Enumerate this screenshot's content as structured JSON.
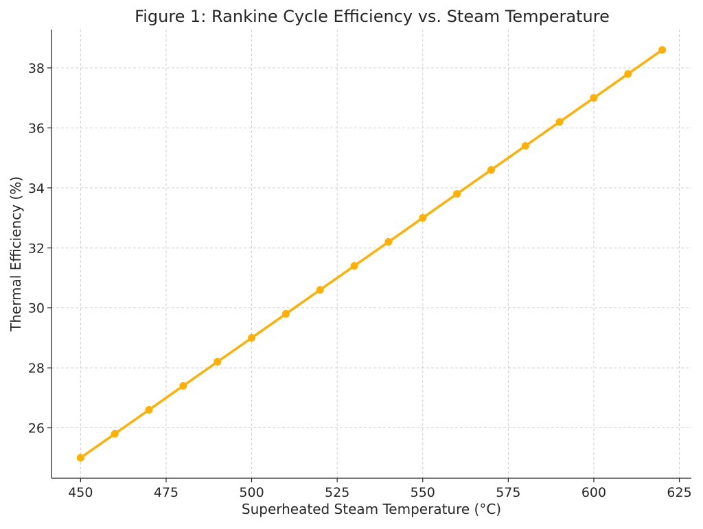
{
  "chart_data": {
    "type": "line",
    "title": "Figure 1: Rankine Cycle Efficiency vs. Steam Temperature",
    "xlabel": "Superheated Steam Temperature (°C)",
    "ylabel": "Thermal Efficiency (%)",
    "xlim": [
      441.5,
      628.5
    ],
    "ylim": [
      24.32,
      39.28
    ],
    "xticks": [
      450,
      475,
      500,
      525,
      550,
      575,
      600,
      625
    ],
    "yticks": [
      26,
      28,
      30,
      32,
      34,
      36,
      38
    ],
    "grid": true,
    "grid_style": "dashed",
    "line_color": "#FFB000",
    "x": [
      450,
      460,
      470,
      480,
      490,
      500,
      510,
      520,
      530,
      540,
      550,
      560,
      570,
      580,
      590,
      600,
      610,
      620
    ],
    "y": [
      25.0,
      25.8,
      26.6,
      27.4,
      28.2,
      29.0,
      29.8,
      30.6,
      31.4,
      32.2,
      33.0,
      33.8,
      34.6,
      35.4,
      36.2,
      37.0,
      37.8,
      38.6
    ],
    "marker": "circle"
  }
}
